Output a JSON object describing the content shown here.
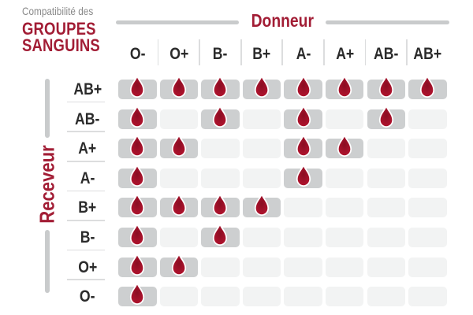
{
  "colors": {
    "accent_red": "#A21D35",
    "drop_red": "#A4112A",
    "drop_red_dark": "#8A0D22",
    "drop_red_light": "#B2142E",
    "cell_compatible": "#CDCFD0",
    "cell_incompatible": "#F2F3F3",
    "label_dark": "#2B2B2B",
    "subtitle_gray": "#8A8A8A",
    "divider_gray": "#C9CBCC",
    "separator_light": "#DCDDDE",
    "background": "#FFFFFF"
  },
  "title": {
    "subtitle": "Compatibilité des",
    "line1": "GROUPES",
    "line2": "SANGUINS"
  },
  "axes": {
    "donor_label": "Donneur",
    "receiver_label": "Receveur"
  },
  "icons": {
    "compatible_marker": "blood-drop-icon"
  },
  "chart_data": {
    "type": "heatmap",
    "title": "Compatibilité des GROUPES SANGUINS",
    "x_axis_label": "Donneur",
    "y_axis_label": "Receveur",
    "columns": [
      "O-",
      "O+",
      "B-",
      "B+",
      "A-",
      "A+",
      "AB-",
      "AB+"
    ],
    "rows": [
      "AB+",
      "AB-",
      "A+",
      "A-",
      "B+",
      "B-",
      "O+",
      "O-"
    ],
    "values": [
      [
        1,
        1,
        1,
        1,
        1,
        1,
        1,
        1
      ],
      [
        1,
        0,
        1,
        0,
        1,
        0,
        1,
        0
      ],
      [
        1,
        1,
        0,
        0,
        1,
        1,
        0,
        0
      ],
      [
        1,
        0,
        0,
        0,
        1,
        0,
        0,
        0
      ],
      [
        1,
        1,
        1,
        1,
        0,
        0,
        0,
        0
      ],
      [
        1,
        0,
        1,
        0,
        0,
        0,
        0,
        0
      ],
      [
        1,
        1,
        0,
        0,
        0,
        0,
        0,
        0
      ],
      [
        1,
        0,
        0,
        0,
        0,
        0,
        0,
        0
      ]
    ],
    "marker": "blood-drop-icon",
    "cell_meaning": "1 = compatible (blood drop shown), 0 = incompatible (empty cell)"
  }
}
